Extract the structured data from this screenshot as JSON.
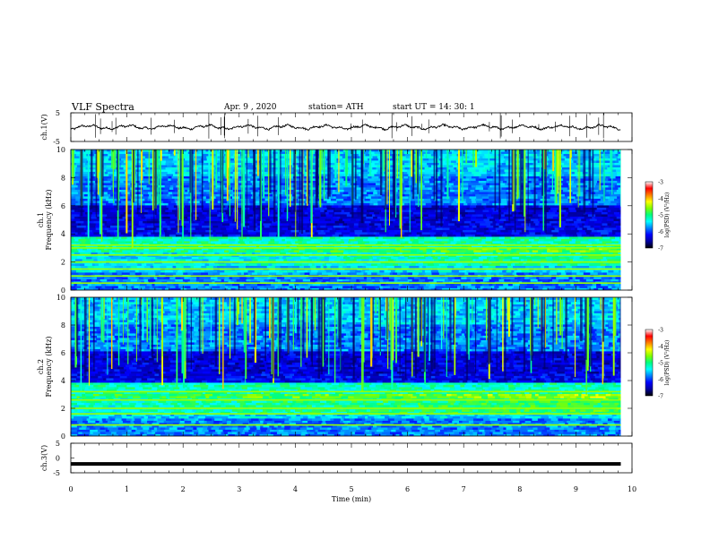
{
  "header": {
    "title": "VLF  Spectra",
    "date": "Apr. 9  , 2020",
    "station": "station= ATH",
    "start": "start  UT  =   14: 30: 1"
  },
  "chart_data": {
    "type": "heatmap",
    "xlabel": "Time  (min)",
    "x_ticks": [
      "0",
      "1",
      "2",
      "3",
      "4",
      "5",
      "6",
      "7",
      "8",
      "9",
      "10"
    ],
    "xlim": [
      0,
      10
    ],
    "panels": [
      {
        "id": "ch1-waveform",
        "type": "line",
        "ylabel": "ch.1(V)",
        "y_ticks": [
          "5",
          "-5"
        ],
        "ylim": [
          -5,
          5
        ],
        "baseline": 0,
        "data_end_min": 9.8
      },
      {
        "id": "ch1-spectrogram",
        "type": "heatmap",
        "ylabel_channel": "ch.1",
        "ylabel": "Frequency  (kHz)",
        "y_ticks": [
          "0",
          "2",
          "4",
          "6",
          "8",
          "10"
        ],
        "ylim": [
          0,
          10
        ],
        "colorbar": {
          "label": "log(PSD) (V²/Hz)",
          "ticks": [
            "-3",
            "-4",
            "-5",
            "-6",
            "-7"
          ],
          "range": [
            -7,
            -3
          ]
        },
        "hum_lines_khz": [
          0.5,
          1.0,
          1.5,
          2.0,
          2.5,
          3.0,
          3.2
        ]
      },
      {
        "id": "ch2-spectrogram",
        "type": "heatmap",
        "ylabel_channel": "ch.2",
        "ylabel": "Frequency  (kHz)",
        "y_ticks": [
          "0",
          "2",
          "4",
          "6",
          "8",
          "10"
        ],
        "ylim": [
          0,
          10
        ],
        "colorbar": {
          "label": "log(PSD) (V²/Hz)",
          "ticks": [
            "-3",
            "-4",
            "-5",
            "-6",
            "-7"
          ],
          "range": [
            -7,
            -3
          ]
        },
        "hum_lines_khz": [
          0.8,
          1.6,
          2.0,
          2.6,
          3.2
        ]
      },
      {
        "id": "ch3-waveform",
        "type": "line",
        "ylabel": "ch.3(V)",
        "y_ticks": [
          "5",
          "0",
          "-5"
        ],
        "ylim": [
          -5,
          5
        ],
        "baseline": -2,
        "data_end_min": 9.8
      }
    ],
    "colormap": [
      "#000000",
      "#0000a0",
      "#0000ff",
      "#0080ff",
      "#00ffff",
      "#00ff80",
      "#80ff00",
      "#ffff00",
      "#ff8000",
      "#ff0000",
      "#ffffff"
    ]
  }
}
